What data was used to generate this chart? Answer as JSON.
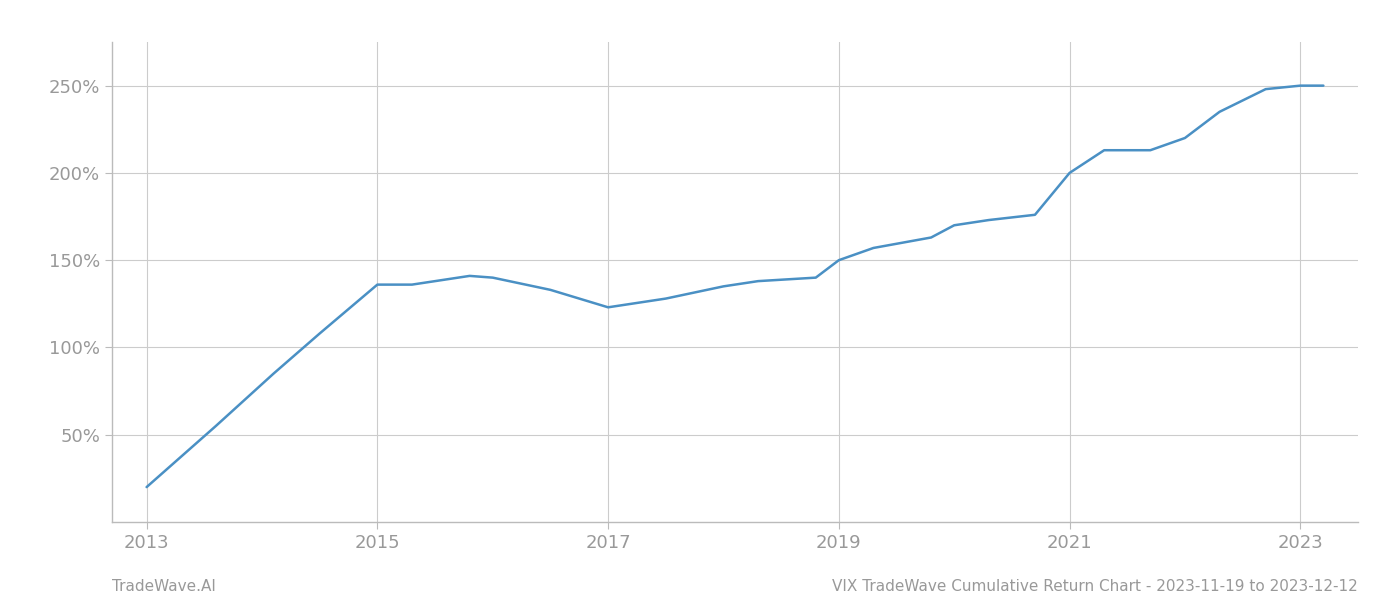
{
  "x_years": [
    2013.0,
    2013.6,
    2014.1,
    2014.5,
    2015.0,
    2015.3,
    2015.8,
    2016.0,
    2016.5,
    2017.0,
    2017.5,
    2018.0,
    2018.3,
    2018.8,
    2019.0,
    2019.3,
    2019.8,
    2020.0,
    2020.3,
    2020.7,
    2021.0,
    2021.3,
    2021.7,
    2022.0,
    2022.3,
    2022.7,
    2023.0,
    2023.2
  ],
  "y_values": [
    20,
    55,
    85,
    108,
    136,
    136,
    141,
    140,
    133,
    123,
    128,
    135,
    138,
    140,
    150,
    157,
    163,
    170,
    173,
    176,
    200,
    213,
    213,
    220,
    235,
    248,
    250,
    250
  ],
  "line_color": "#4a90c4",
  "line_width": 1.8,
  "background_color": "#ffffff",
  "grid_color": "#cccccc",
  "x_tick_labels": [
    "2013",
    "2015",
    "2017",
    "2019",
    "2021",
    "2023"
  ],
  "x_tick_positions": [
    2013,
    2015,
    2017,
    2019,
    2021,
    2023
  ],
  "y_tick_labels": [
    "50%",
    "100%",
    "150%",
    "200%",
    "250%"
  ],
  "y_tick_positions": [
    50,
    100,
    150,
    200,
    250
  ],
  "xlim": [
    2012.7,
    2023.5
  ],
  "ylim": [
    0,
    275
  ],
  "title_text": "VIX TradeWave Cumulative Return Chart - 2023-11-19 to 2023-12-12",
  "footer_left": "TradeWave.AI",
  "tick_color": "#999999",
  "tick_fontsize": 13,
  "footer_fontsize": 11,
  "spine_color": "#bbbbbb"
}
